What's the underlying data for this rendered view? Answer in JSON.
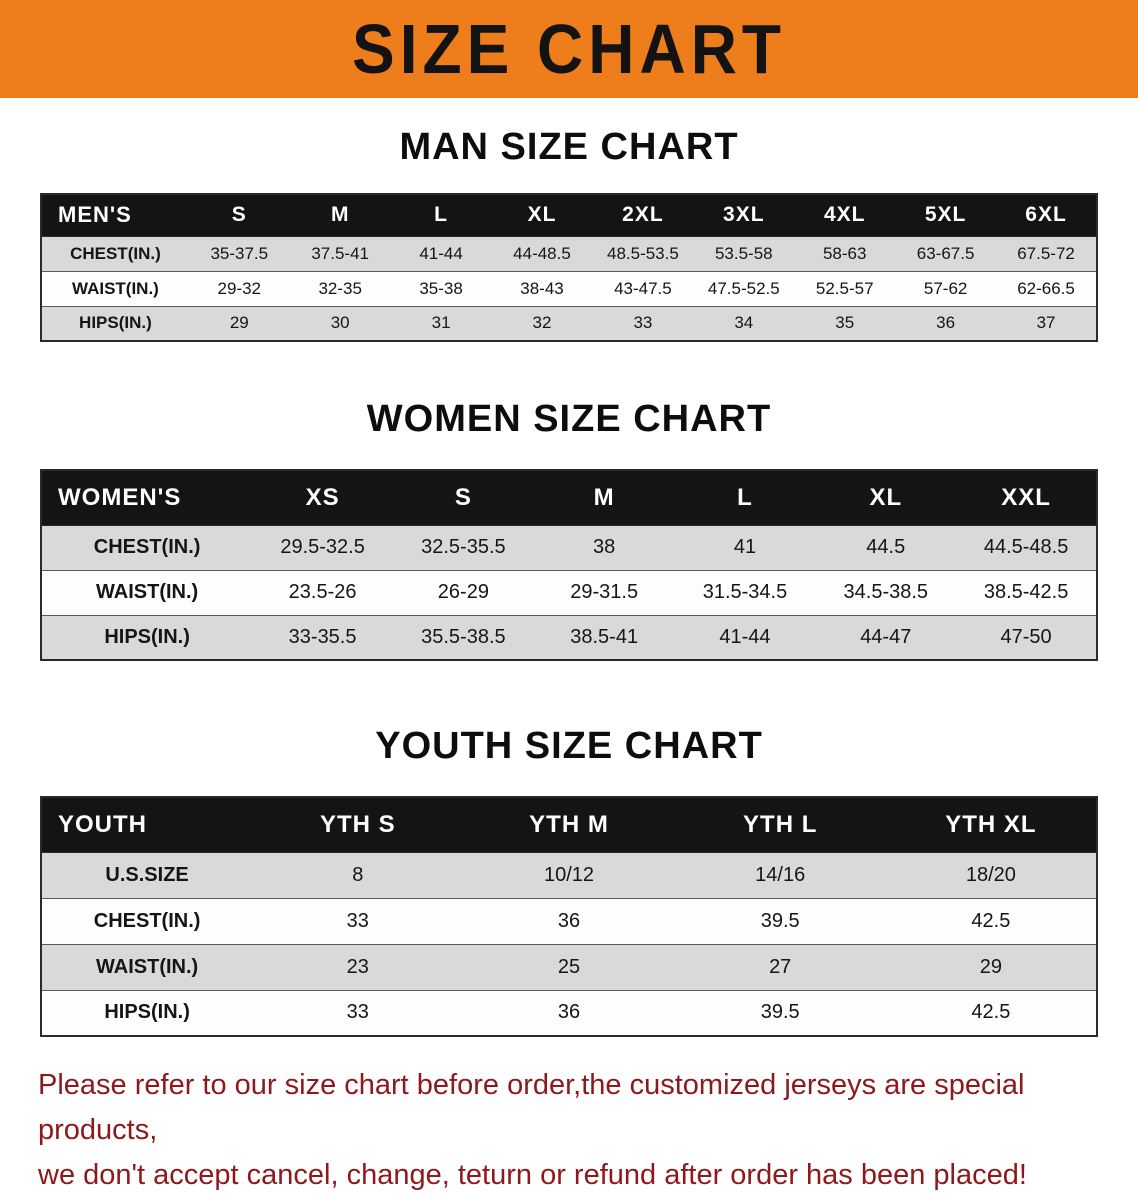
{
  "banner": {
    "title": "SIZE CHART"
  },
  "sections": [
    {
      "heading": "MAN SIZE CHART",
      "table": {
        "header": [
          "MEN'S",
          "S",
          "M",
          "L",
          "XL",
          "2XL",
          "3XL",
          "4XL",
          "5XL",
          "6XL"
        ],
        "rows": [
          [
            "CHEST(IN.)",
            "35-37.5",
            "37.5-41",
            "41-44",
            "44-48.5",
            "48.5-53.5",
            "53.5-58",
            "58-63",
            "63-67.5",
            "67.5-72"
          ],
          [
            "WAIST(IN.)",
            "29-32",
            "32-35",
            "35-38",
            "38-43",
            "43-47.5",
            "47.5-52.5",
            "52.5-57",
            "57-62",
            "62-66.5"
          ],
          [
            "HIPS(IN.)",
            "29",
            "30",
            "31",
            "32",
            "33",
            "34",
            "35",
            "36",
            "37"
          ]
        ]
      }
    },
    {
      "heading": "WOMEN SIZE CHART",
      "table": {
        "header": [
          "WOMEN'S",
          "XS",
          "S",
          "M",
          "L",
          "XL",
          "XXL"
        ],
        "rows": [
          [
            "CHEST(IN.)",
            "29.5-32.5",
            "32.5-35.5",
            "38",
            "41",
            "44.5",
            "44.5-48.5"
          ],
          [
            "WAIST(IN.)",
            "23.5-26",
            "26-29",
            "29-31.5",
            "31.5-34.5",
            "34.5-38.5",
            "38.5-42.5"
          ],
          [
            "HIPS(IN.)",
            "33-35.5",
            "35.5-38.5",
            "38.5-41",
            "41-44",
            "44-47",
            "47-50"
          ]
        ]
      }
    },
    {
      "heading": "YOUTH SIZE CHART",
      "table": {
        "header": [
          "YOUTH",
          "YTH S",
          "YTH M",
          "YTH L",
          "YTH XL"
        ],
        "rows": [
          [
            "U.S.SIZE",
            "8",
            "10/12",
            "14/16",
            "18/20"
          ],
          [
            "CHEST(IN.)",
            "33",
            "36",
            "39.5",
            "42.5"
          ],
          [
            "WAIST(IN.)",
            "23",
            "25",
            "27",
            "29"
          ],
          [
            "HIPS(IN.)",
            "33",
            "36",
            "39.5",
            "42.5"
          ]
        ]
      }
    }
  ],
  "disclaimer": {
    "lines": [
      "Please refer to our size chart before order,the customized jerseys are special products,",
      "we don't accept cancel, change, teturn or refund after order has been placed!"
    ]
  },
  "colors": {
    "banner_orange": "#EE7E1C",
    "header_black": "#141414",
    "row_gray": "#D9D9D9",
    "disclaimer_red": "#8E191C"
  }
}
